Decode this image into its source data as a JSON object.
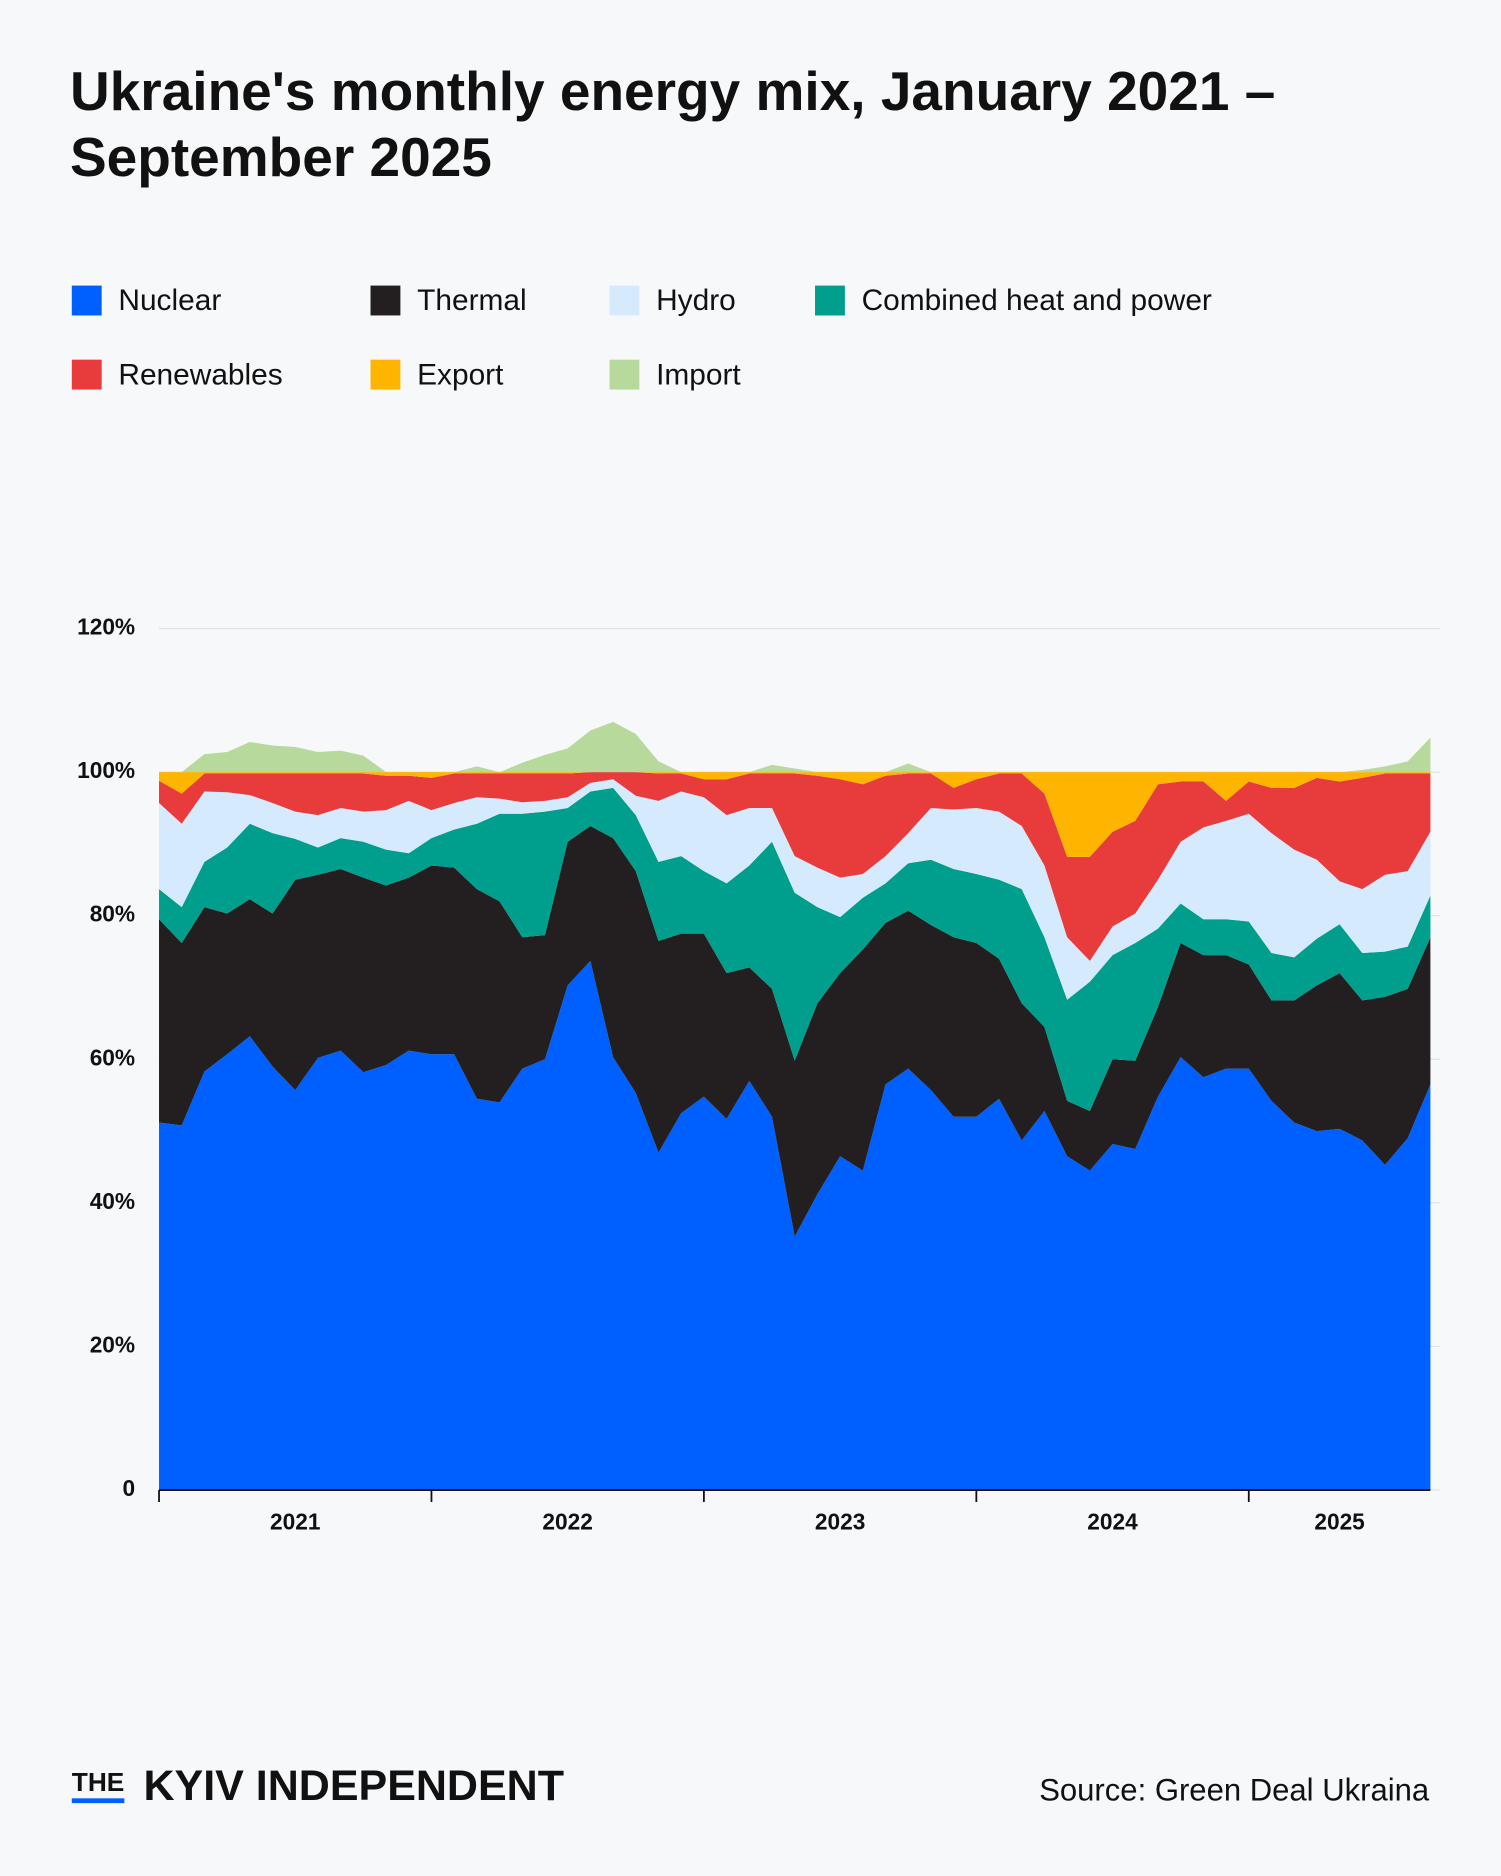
{
  "chart_data": {
    "type": "stacked_area",
    "title": "Ukraine's monthly energy mix, January 2021 – September 2025",
    "x": [
      "2021-01",
      "2021-02",
      "2021-03",
      "2021-04",
      "2021-05",
      "2021-06",
      "2021-07",
      "2021-08",
      "2021-09",
      "2021-10",
      "2021-11",
      "2021-12",
      "2022-01",
      "2022-02",
      "2022-03",
      "2022-04",
      "2022-05",
      "2022-06",
      "2022-07",
      "2022-08",
      "2022-09",
      "2022-10",
      "2022-11",
      "2022-12",
      "2023-01",
      "2023-02",
      "2023-03",
      "2023-04",
      "2023-05",
      "2023-06",
      "2023-07",
      "2023-08",
      "2023-09",
      "2023-10",
      "2023-11",
      "2023-12",
      "2024-01",
      "2024-02",
      "2024-03",
      "2024-04",
      "2024-05",
      "2024-06",
      "2024-07",
      "2024-08",
      "2024-09",
      "2024-10",
      "2024-11",
      "2024-12",
      "2025-01",
      "2025-02",
      "2025-03",
      "2025-04",
      "2025-05",
      "2025-06",
      "2025-07",
      "2025-08",
      "2025-09"
    ],
    "series": [
      {
        "name": "Nuclear",
        "color": "#0060ff",
        "values": [
          51.2,
          50.8,
          58.3,
          60.7,
          63.2,
          59,
          55.7,
          60.2,
          61.2,
          58.2,
          59.2,
          61.2,
          60.7,
          60.7,
          54.5,
          54,
          58.7,
          60,
          70.3,
          73.7,
          60.3,
          55.3,
          47,
          52.5,
          54.8,
          51.7,
          57,
          52,
          35.3,
          41.2,
          46.5,
          44.5,
          56.5,
          58.7,
          55.7,
          52,
          52,
          54.5,
          48.7,
          52.8,
          46.5,
          44.5,
          48.2,
          47.5,
          54.8,
          60.3,
          57.5,
          58.7,
          58.7,
          54.2,
          51.2,
          50,
          50.3,
          48.7,
          45.3,
          49,
          56.5
        ]
      },
      {
        "name": "Thermal",
        "color": "#231f20",
        "values": [
          28.3,
          25.4,
          22.9,
          19.6,
          19.1,
          21.3,
          29.3,
          25.5,
          25.3,
          27.1,
          25,
          24.1,
          26.3,
          26,
          29.2,
          28,
          18.3,
          17.3,
          20,
          18.8,
          30.5,
          30.9,
          29.5,
          25,
          22.7,
          20.3,
          15.8,
          17.8,
          24.5,
          26.6,
          25.5,
          30.8,
          22.5,
          22,
          23,
          25,
          24.2,
          19.5,
          19.1,
          11.7,
          7.7,
          8.3,
          11.8,
          12.3,
          12.5,
          15.9,
          17,
          15.8,
          14.5,
          14,
          17,
          20.3,
          21.7,
          19.5,
          23.4,
          20.8,
          20.5
        ]
      },
      {
        "name": "Hydro",
        "color": "#d5eafc",
        "values": [
          12,
          11.6,
          9.8,
          7.7,
          4,
          4.2,
          3.8,
          4.5,
          4.2,
          4.2,
          5.5,
          7.3,
          3.9,
          3.7,
          3.7,
          2.1,
          1.6,
          1.5,
          1.5,
          1.2,
          1.2,
          2.7,
          8.5,
          9,
          10.3,
          9.5,
          8,
          4.7,
          5.1,
          5.5,
          5.5,
          3.3,
          3.8,
          4.2,
          7.2,
          8.3,
          9.2,
          9.5,
          8.8,
          10,
          8.7,
          2.9,
          4,
          4.1,
          6.8,
          8.6,
          12.8,
          13.7,
          15,
          16.7,
          15,
          11,
          6,
          8.9,
          10.7,
          10.5,
          8.9
        ]
      },
      {
        "name": "Combined heat and power",
        "color": "#009e8c",
        "values": [
          4.2,
          5,
          6.3,
          9.2,
          10.5,
          11.2,
          5.7,
          3.8,
          4.3,
          5,
          5,
          3.4,
          3.8,
          5.3,
          9.1,
          12.2,
          17.2,
          17.2,
          4.7,
          4.8,
          7,
          7.8,
          11,
          10.8,
          8.7,
          12.5,
          14.2,
          20.5,
          23.4,
          13.4,
          7.8,
          7.2,
          5.5,
          6.6,
          9.1,
          9.5,
          9.6,
          11,
          15.9,
          12.5,
          14.1,
          18,
          14.5,
          16.4,
          10.9,
          5.5,
          5,
          5,
          6,
          6.6,
          6,
          6.5,
          6.8,
          6.6,
          6.3,
          5.9,
          5.8
        ]
      },
      {
        "name": "Renewables",
        "color": "#e83c3c",
        "values": [
          3.1,
          4.2,
          2.5,
          2.6,
          3,
          4.1,
          5.3,
          5.8,
          4.8,
          5.3,
          4.8,
          3.5,
          4.5,
          4.1,
          3.3,
          3.5,
          4,
          3.8,
          3.3,
          1.5,
          1,
          3.3,
          3.8,
          2.5,
          2.5,
          5,
          4.8,
          4.8,
          11.5,
          12.8,
          13.7,
          12.5,
          11.2,
          8.3,
          4.8,
          3,
          4,
          5.3,
          7.3,
          10,
          11.2,
          14.5,
          13.2,
          12.9,
          13.3,
          8.4,
          6.4,
          2.8,
          4.5,
          6.3,
          8.6,
          11.4,
          13.9,
          15.5,
          14.1,
          13.6,
          8.1
        ]
      },
      {
        "name": "Export",
        "color": "#ffb400",
        "values": [
          1.2,
          3,
          0.2,
          0.2,
          0.2,
          0.2,
          0.2,
          0.2,
          0.2,
          0.2,
          0.5,
          0.5,
          0.8,
          0.2,
          0.2,
          0.2,
          0.2,
          0.2,
          0.2,
          0,
          0,
          0,
          0.2,
          0.2,
          1,
          1,
          0.2,
          0.2,
          0.2,
          0.5,
          1,
          1.7,
          0.5,
          0.2,
          0.2,
          2.2,
          1,
          0.2,
          0.2,
          3,
          11.8,
          11.8,
          8.3,
          6.8,
          1.7,
          1.3,
          1.3,
          4,
          1.3,
          2.2,
          2.2,
          0.8,
          1.3,
          0.8,
          0.2,
          0.2,
          0.2
        ]
      },
      {
        "name": "Import",
        "color": "#b8d99c",
        "values": [
          0,
          0,
          2.5,
          2.8,
          4.2,
          3.7,
          3.5,
          2.8,
          3,
          2.3,
          0,
          0,
          0,
          0,
          0.8,
          0,
          1.3,
          2.4,
          3.3,
          5.8,
          7,
          5.3,
          1.5,
          0,
          0,
          0,
          0,
          1,
          0.5,
          0,
          0,
          0,
          0,
          1.2,
          0,
          0,
          0,
          0,
          0,
          0,
          0,
          0,
          0,
          0,
          0,
          0,
          0,
          0,
          0,
          0,
          0,
          0,
          0,
          0.3,
          0.8,
          1.5,
          4.8
        ]
      }
    ],
    "xlim": [
      "2021-01",
      "2025-09"
    ],
    "xticks": [
      {
        "value": "2021-01",
        "label": "2021"
      },
      {
        "value": "2022-01",
        "label": "2022"
      },
      {
        "value": "2023-01",
        "label": "2023"
      },
      {
        "value": "2024-01",
        "label": "2024"
      },
      {
        "value": "2025-01",
        "label": "2025"
      }
    ],
    "ylim": [
      0,
      120
    ],
    "yticks": [
      0,
      {
        "value": 20,
        "label": "20%"
      },
      {
        "value": 40,
        "label": "40%"
      },
      {
        "value": 60,
        "label": "60%"
      },
      {
        "value": 80,
        "label": "80%"
      },
      {
        "value": 100,
        "label": "100%"
      },
      {
        "value": 120,
        "label": "120%"
      }
    ],
    "grid": true,
    "source": "Source: Green Deal Ukraina"
  },
  "branding": {
    "small": "THE",
    "name": "KYIV INDEPENDENT"
  }
}
